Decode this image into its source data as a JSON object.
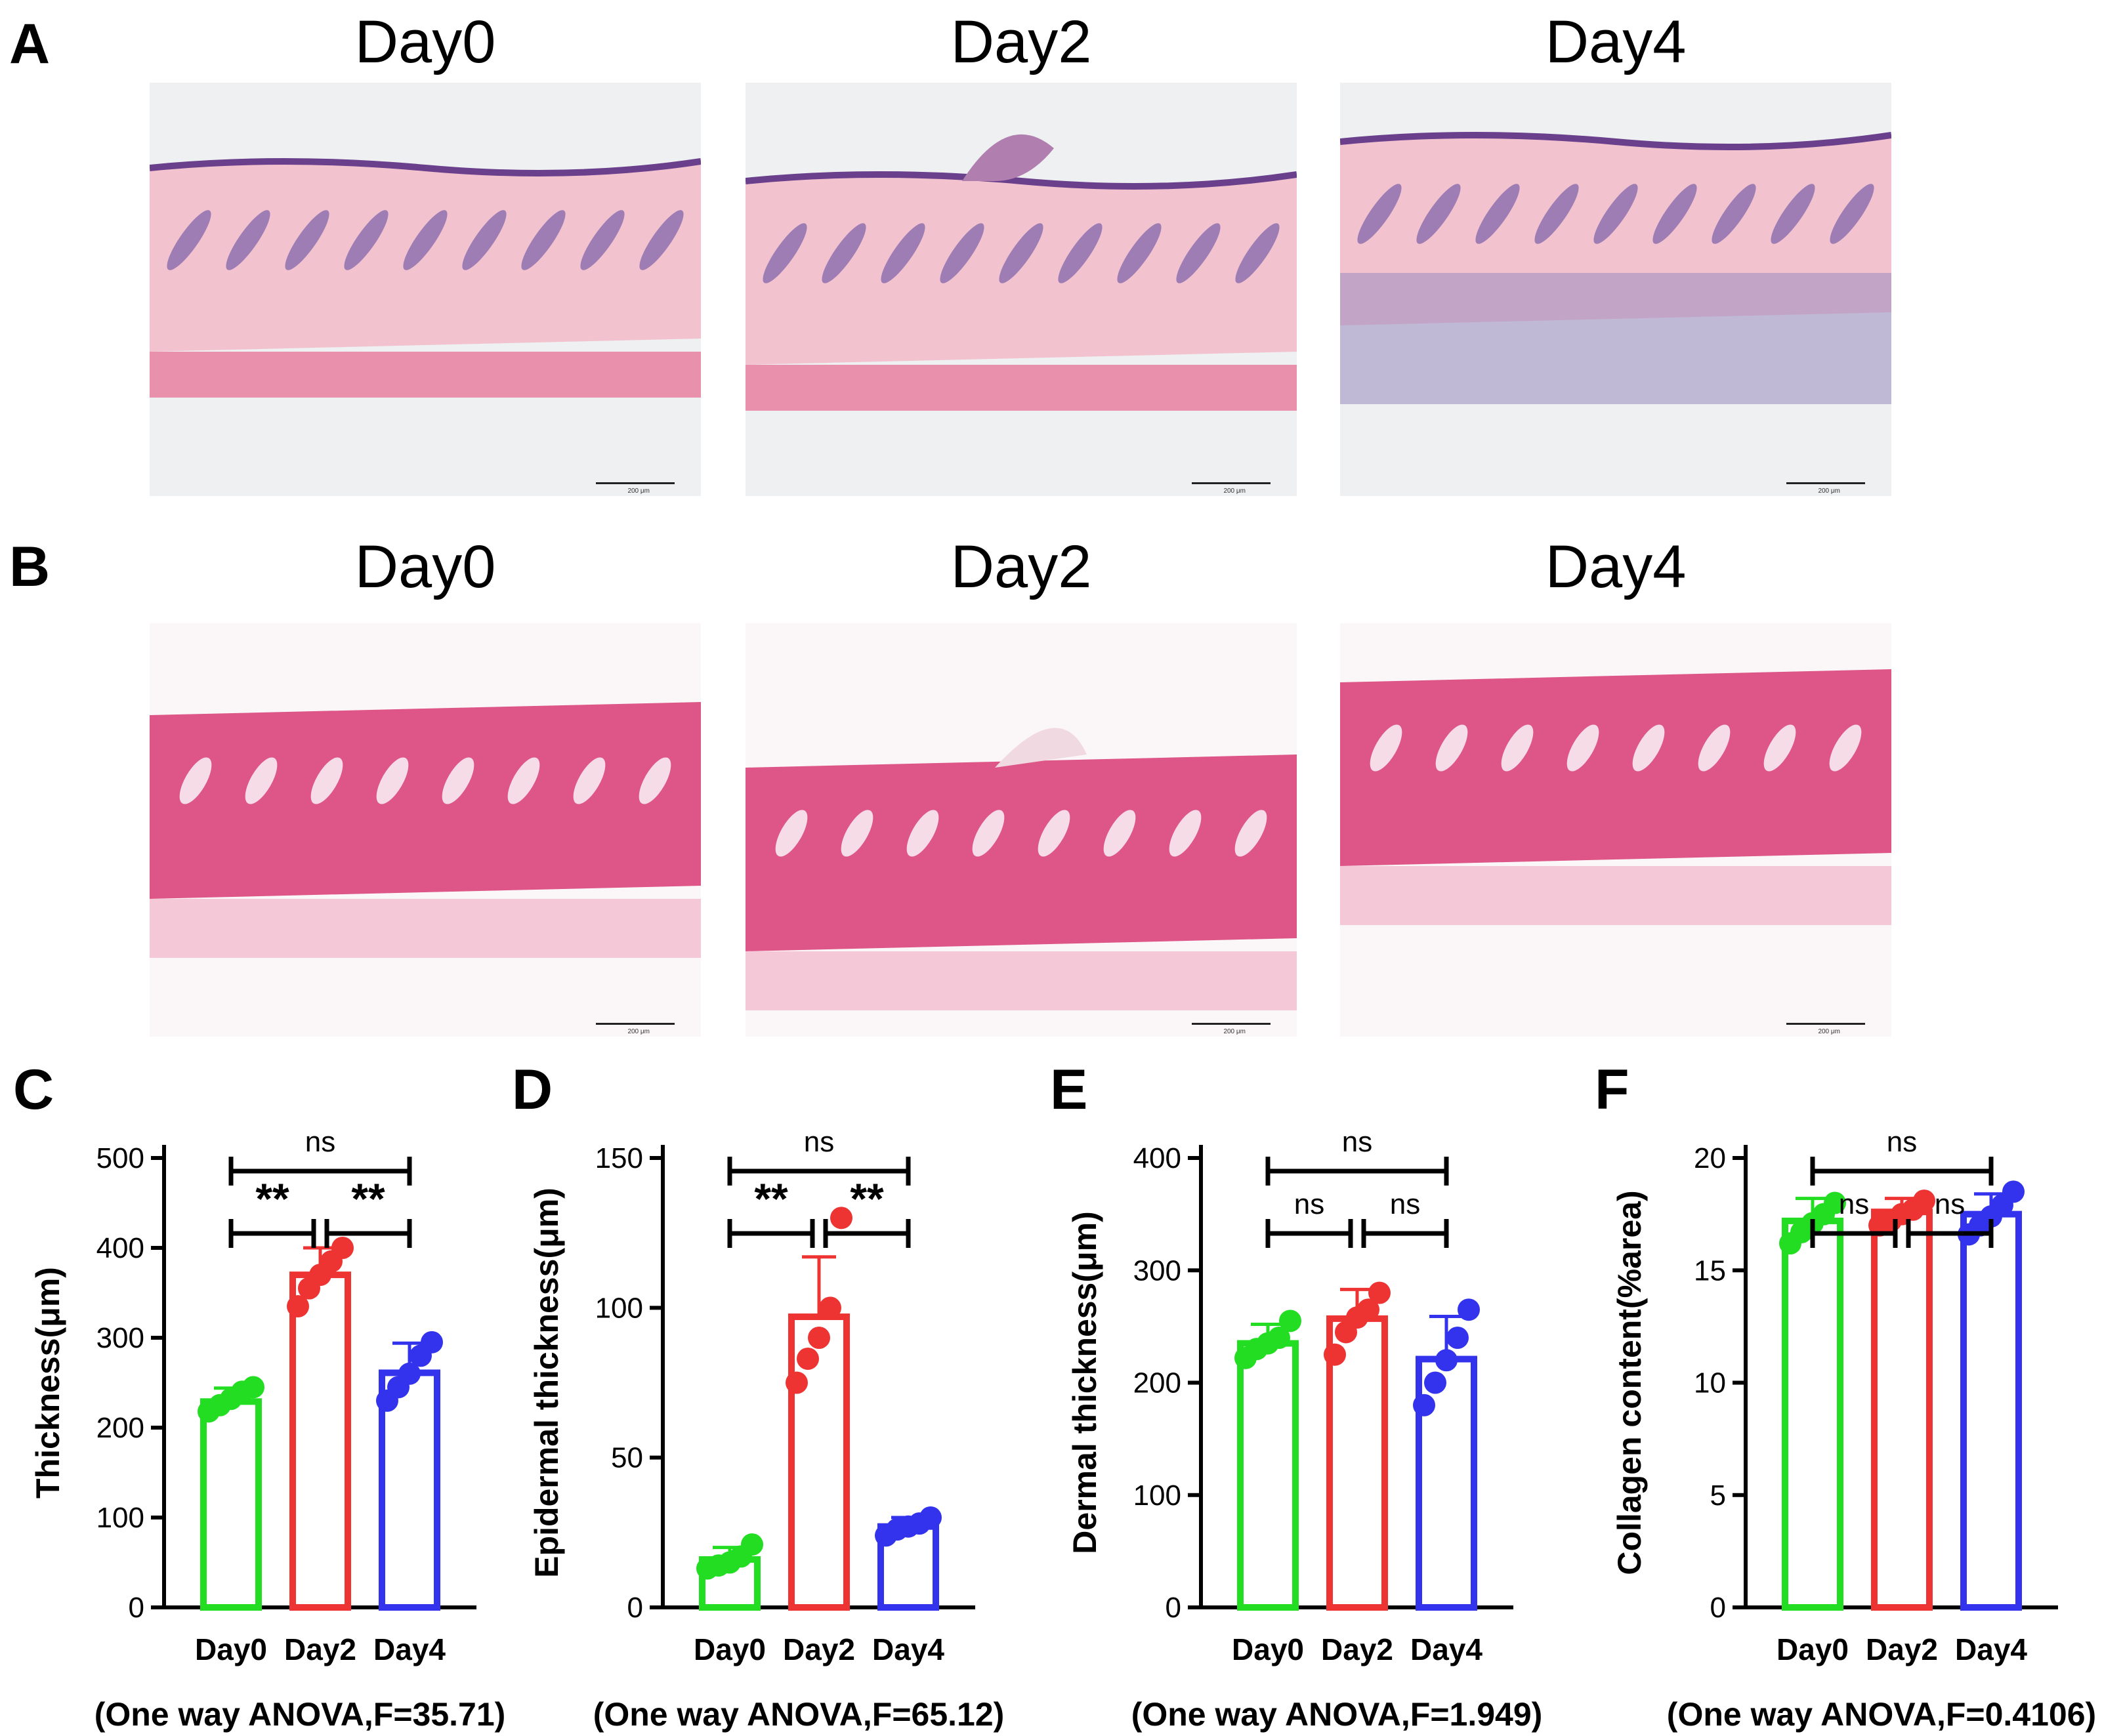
{
  "figure": {
    "panels_top": [
      {
        "letter": "A",
        "stain": "he",
        "titles": [
          "Day0",
          "Day2",
          "Day4"
        ],
        "scale_label": "200 μm"
      },
      {
        "letter": "B",
        "stain": "sr",
        "titles": [
          "Day0",
          "Day2",
          "Day4"
        ],
        "scale_label": "200 μm"
      }
    ],
    "colors": {
      "Day0": "#22dd22",
      "Day2": "#ee3333",
      "Day4": "#3333ee",
      "he_pink": "#f2b8c8",
      "he_purple": "#6a5a9e",
      "sr_red": "#d9447a"
    }
  },
  "chart_data": [
    {
      "letter": "C",
      "type": "bar",
      "categories": [
        "Day0",
        "Day2",
        "Day4"
      ],
      "values": [
        229,
        370,
        261
      ],
      "errors": [
        15,
        30,
        33
      ],
      "points": [
        [
          218,
          225,
          232,
          240,
          245
        ],
        [
          335,
          355,
          370,
          385,
          400
        ],
        [
          230,
          245,
          260,
          280,
          295
        ]
      ],
      "ylabel": "Thickness(μm)",
      "ylim": [
        0,
        500
      ],
      "yticks": [
        0,
        100,
        200,
        300,
        400,
        500
      ],
      "annotation": "(One way ANOVA,F=35.71)",
      "brackets": [
        {
          "from": 0,
          "to": 2,
          "label": "ns",
          "level": 2
        },
        {
          "from": 0,
          "to": 1,
          "label": "**",
          "level": 1
        },
        {
          "from": 1,
          "to": 2,
          "label": "**",
          "level": 1
        }
      ]
    },
    {
      "letter": "D",
      "type": "bar",
      "categories": [
        "Day0",
        "Day2",
        "Day4"
      ],
      "values": [
        16,
        97,
        27
      ],
      "errors": [
        4,
        20,
        3
      ],
      "points": [
        [
          13,
          14,
          15,
          17,
          21
        ],
        [
          75,
          83,
          90,
          100,
          130
        ],
        [
          24,
          26,
          27,
          28,
          30
        ]
      ],
      "ylabel": "Epidermal thickness(μm)",
      "ylim": [
        0,
        150
      ],
      "yticks": [
        0,
        50,
        100,
        150
      ],
      "annotation": "(One way ANOVA,F=65.12)",
      "brackets": [
        {
          "from": 0,
          "to": 2,
          "label": "ns",
          "level": 2
        },
        {
          "from": 0,
          "to": 1,
          "label": "**",
          "level": 1
        },
        {
          "from": 1,
          "to": 2,
          "label": "**",
          "level": 1
        }
      ]
    },
    {
      "letter": "E",
      "type": "bar",
      "categories": [
        "Day0",
        "Day2",
        "Day4"
      ],
      "values": [
        235,
        257,
        221
      ],
      "errors": [
        17,
        26,
        38
      ],
      "points": [
        [
          222,
          230,
          235,
          240,
          255
        ],
        [
          225,
          245,
          258,
          265,
          280
        ],
        [
          180,
          200,
          220,
          240,
          265
        ]
      ],
      "ylabel": "Dermal thickness(μm)",
      "ylim": [
        0,
        400
      ],
      "yticks": [
        0,
        100,
        200,
        300,
        400
      ],
      "annotation": "(One way ANOVA,F=1.949)",
      "brackets": [
        {
          "from": 0,
          "to": 2,
          "label": "ns",
          "level": 2
        },
        {
          "from": 0,
          "to": 1,
          "label": "ns",
          "level": 1
        },
        {
          "from": 1,
          "to": 2,
          "label": "ns",
          "level": 1
        }
      ]
    },
    {
      "letter": "F",
      "type": "bar",
      "categories": [
        "Day0",
        "Day2",
        "Day4"
      ],
      "values": [
        17.2,
        17.6,
        17.5
      ],
      "errors": [
        1.0,
        0.6,
        0.9
      ],
      "points": [
        [
          16.2,
          16.7,
          17.1,
          17.5,
          18.0
        ],
        [
          17.0,
          17.2,
          17.5,
          17.7,
          18.1
        ],
        [
          16.6,
          17.0,
          17.4,
          17.9,
          18.5
        ]
      ],
      "ylabel": "Collagen content(%area)",
      "ylim": [
        0,
        20
      ],
      "yticks": [
        0,
        5,
        10,
        15,
        20
      ],
      "annotation": "(One way ANOVA,F=0.4106)",
      "brackets": [
        {
          "from": 0,
          "to": 2,
          "label": "ns",
          "level": 2
        },
        {
          "from": 0,
          "to": 1,
          "label": "ns",
          "level": 1
        },
        {
          "from": 1,
          "to": 2,
          "label": "ns",
          "level": 1
        }
      ]
    }
  ]
}
